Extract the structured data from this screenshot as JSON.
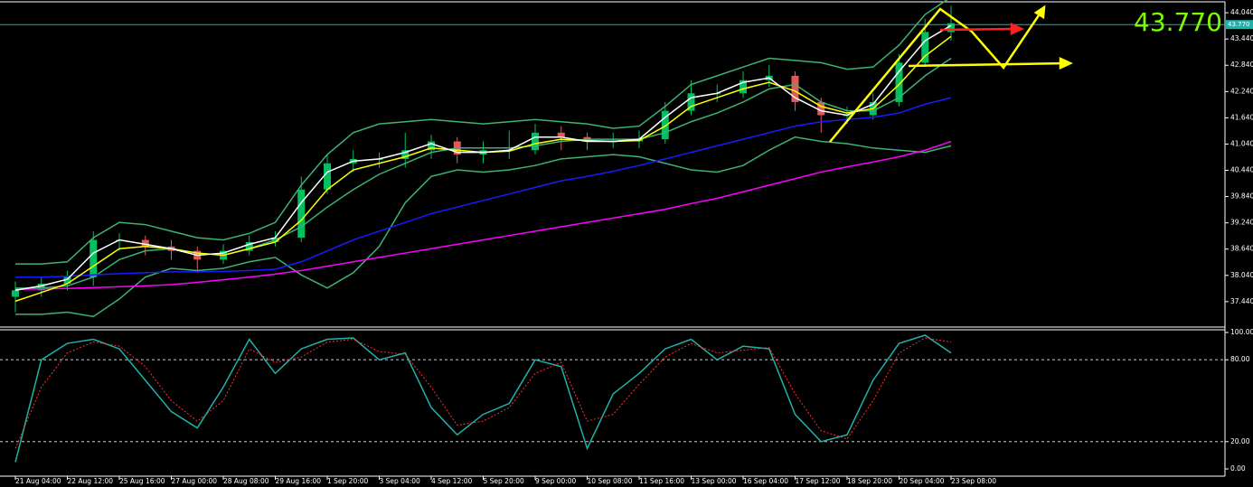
{
  "chart_data": [
    {
      "type": "candlestick",
      "categories": [
        "21 Aug 04:00",
        null,
        "22 Aug 12:00",
        null,
        "25 Aug 16:00",
        null,
        "27 Aug 00:00",
        null,
        "28 Aug 08:00",
        null,
        "29 Aug 16:00",
        null,
        "1 Sep 20:00",
        null,
        "3 Sep 04:00",
        null,
        "4 Sep 12:00",
        null,
        "5 Sep 20:00",
        null,
        "9 Sep 00:00",
        null,
        "10 Sep 08:00",
        null,
        "11 Sep 16:00",
        null,
        "13 Sep 00:00",
        null,
        "16 Sep 04:00",
        null,
        "17 Sep 12:00",
        null,
        "18 Sep 20:00",
        null,
        "20 Sep 04:00",
        null,
        "23 Sep 08:00"
      ],
      "open": [
        37.55,
        37.7,
        37.85,
        38.0,
        38.85,
        38.85,
        38.7,
        38.6,
        38.4,
        38.6,
        38.8,
        38.9,
        40.0,
        40.6,
        40.7,
        40.7,
        40.9,
        41.1,
        40.8,
        40.9,
        40.9,
        41.3,
        41.2,
        41.1,
        41.1,
        41.15,
        41.8,
        42.2,
        42.2,
        42.5,
        42.6,
        42.0,
        41.7,
        41.7,
        42.0,
        42.9,
        43.6
      ],
      "high": [
        37.9,
        38.0,
        38.15,
        39.05,
        39.0,
        38.95,
        38.85,
        38.7,
        38.75,
        38.95,
        39.05,
        40.3,
        40.8,
        40.9,
        40.85,
        41.3,
        41.25,
        41.2,
        41.1,
        41.35,
        41.5,
        41.45,
        41.3,
        41.3,
        41.35,
        42.0,
        42.5,
        42.4,
        42.7,
        42.85,
        42.7,
        42.1,
        41.9,
        42.2,
        43.1,
        43.9,
        44.2
      ],
      "low": [
        37.2,
        37.55,
        37.7,
        37.8,
        38.6,
        38.5,
        38.4,
        38.1,
        38.3,
        38.5,
        38.7,
        38.8,
        39.9,
        40.4,
        40.5,
        40.5,
        40.7,
        40.6,
        40.6,
        40.7,
        40.8,
        40.9,
        40.9,
        40.95,
        40.95,
        41.05,
        41.7,
        42.0,
        42.1,
        42.35,
        41.8,
        41.3,
        41.5,
        41.6,
        41.9,
        42.8,
        43.4
      ],
      "close": [
        37.7,
        37.85,
        38.0,
        38.85,
        38.85,
        38.7,
        38.6,
        38.4,
        38.6,
        38.8,
        38.9,
        40.0,
        40.6,
        40.7,
        40.7,
        40.9,
        41.1,
        40.8,
        40.9,
        40.9,
        41.3,
        41.2,
        41.1,
        41.1,
        41.15,
        41.8,
        42.2,
        42.2,
        42.5,
        42.6,
        42.0,
        41.7,
        41.7,
        42.0,
        42.9,
        43.6,
        43.8
      ],
      "up_color": "#00c060",
      "down_color": "#e05a5a",
      "series": [
        {
          "color": "#3cb371",
          "values": [
            38.3,
            38.3,
            38.35,
            38.9,
            39.25,
            39.2,
            39.05,
            38.9,
            38.85,
            39.0,
            39.25,
            40.1,
            40.8,
            41.3,
            41.5,
            41.55,
            41.6,
            41.55,
            41.5,
            41.55,
            41.6,
            41.55,
            41.5,
            41.4,
            41.45,
            41.9,
            42.4,
            42.6,
            42.8,
            43.0,
            42.95,
            42.9,
            42.75,
            42.8,
            43.3,
            44.0,
            44.4
          ]
        },
        {
          "color": "#3cb371",
          "values": [
            37.15,
            37.15,
            37.2,
            37.1,
            37.5,
            38.0,
            38.2,
            38.15,
            38.2,
            38.35,
            38.45,
            38.05,
            37.75,
            38.1,
            38.7,
            39.7,
            40.3,
            40.45,
            40.4,
            40.45,
            40.55,
            40.7,
            40.75,
            40.8,
            40.75,
            40.6,
            40.45,
            40.4,
            40.55,
            40.9,
            41.2,
            41.1,
            41.05,
            40.95,
            40.9,
            40.85,
            41.0
          ]
        },
        {
          "color": "#3cb371",
          "values": [
            37.75,
            37.75,
            37.8,
            38.0,
            38.4,
            38.6,
            38.65,
            38.55,
            38.5,
            38.65,
            38.85,
            39.15,
            39.6,
            40.0,
            40.35,
            40.6,
            40.85,
            40.95,
            40.95,
            40.95,
            41.0,
            41.1,
            41.15,
            41.15,
            41.15,
            41.3,
            41.55,
            41.75,
            42.0,
            42.3,
            42.4,
            42.0,
            41.8,
            41.8,
            42.1,
            42.6,
            43.0
          ]
        },
        {
          "color": "#ff00ff",
          "values": [
            37.72,
            37.73,
            37.74,
            37.76,
            37.78,
            37.8,
            37.83,
            37.88,
            37.94,
            38.0,
            38.07,
            38.15,
            38.25,
            38.35,
            38.45,
            38.55,
            38.65,
            38.75,
            38.85,
            38.95,
            39.05,
            39.15,
            39.25,
            39.35,
            39.45,
            39.55,
            39.68,
            39.8,
            39.95,
            40.1,
            40.25,
            40.4,
            40.52,
            40.63,
            40.75,
            40.9,
            41.1
          ]
        },
        {
          "color": "#1a1aff",
          "values": [
            38.0,
            38.0,
            38.02,
            38.05,
            38.08,
            38.1,
            38.12,
            38.12,
            38.13,
            38.15,
            38.18,
            38.35,
            38.6,
            38.85,
            39.05,
            39.25,
            39.45,
            39.6,
            39.75,
            39.9,
            40.05,
            40.2,
            40.3,
            40.42,
            40.55,
            40.7,
            40.85,
            41.0,
            41.15,
            41.3,
            41.45,
            41.55,
            41.6,
            41.65,
            41.75,
            41.95,
            42.1
          ]
        },
        {
          "color": "#ffff00",
          "values": [
            37.45,
            37.65,
            37.85,
            38.25,
            38.65,
            38.7,
            38.65,
            38.55,
            38.5,
            38.65,
            38.8,
            39.3,
            40.0,
            40.45,
            40.6,
            40.75,
            40.95,
            40.9,
            40.85,
            40.88,
            41.05,
            41.15,
            41.12,
            41.1,
            41.12,
            41.45,
            41.9,
            42.1,
            42.3,
            42.45,
            42.25,
            41.9,
            41.75,
            41.85,
            42.4,
            43.05,
            43.5
          ]
        },
        {
          "color": "#ffffff",
          "values": [
            37.7,
            37.8,
            37.95,
            38.55,
            38.85,
            38.75,
            38.65,
            38.5,
            38.55,
            38.75,
            38.9,
            39.7,
            40.4,
            40.65,
            40.7,
            40.85,
            41.05,
            40.85,
            40.85,
            40.9,
            41.2,
            41.2,
            41.1,
            41.1,
            41.15,
            41.65,
            42.1,
            42.2,
            42.45,
            42.55,
            42.1,
            41.8,
            41.7,
            41.95,
            42.7,
            43.4,
            43.75
          ]
        }
      ],
      "current_price": {
        "value": 43.77,
        "label": "43.770"
      },
      "ylim": [
        36.9,
        44.29
      ],
      "yticks": [
        {
          "value": 44.04,
          "label": "44.040"
        },
        {
          "value": 43.44,
          "label": "43.440"
        },
        {
          "value": 42.84,
          "label": "42.840"
        },
        {
          "value": 42.24,
          "label": "42.240"
        },
        {
          "value": 41.64,
          "label": "41.640"
        },
        {
          "value": 41.04,
          "label": "41.040"
        },
        {
          "value": 40.44,
          "label": "40.440"
        },
        {
          "value": 39.84,
          "label": "39.840"
        },
        {
          "value": 39.24,
          "label": "39.240"
        },
        {
          "value": 38.64,
          "label": "38.640"
        },
        {
          "value": 38.04,
          "label": "38.040"
        },
        {
          "value": 37.44,
          "label": "37.440"
        }
      ]
    },
    {
      "type": "line",
      "series": [
        {
          "color": "#20b2aa",
          "values": [
            5,
            80,
            92,
            95,
            88,
            65,
            42,
            30,
            60,
            95,
            70,
            88,
            95,
            96,
            80,
            85,
            45,
            25,
            40,
            48,
            80,
            75,
            15,
            55,
            70,
            88,
            95,
            80,
            90,
            88,
            40,
            20,
            25,
            65,
            92,
            98,
            85
          ]
        },
        {
          "color": "#ff3030",
          "dashed": true,
          "values": [
            15,
            60,
            85,
            93,
            90,
            75,
            50,
            35,
            50,
            88,
            78,
            82,
            93,
            95,
            86,
            84,
            60,
            32,
            35,
            45,
            70,
            78,
            35,
            40,
            62,
            82,
            92,
            85,
            87,
            89,
            55,
            28,
            22,
            50,
            85,
            96,
            93
          ]
        }
      ],
      "levels": [
        80,
        20
      ],
      "ylim": [
        -5.3,
        103.3
      ],
      "yticks": [
        {
          "value": 100,
          "label": "100.00"
        },
        {
          "value": 80,
          "label": "80.00"
        },
        {
          "value": 20,
          "label": "20.00"
        },
        {
          "value": 0,
          "label": "0.00"
        }
      ]
    }
  ]
}
